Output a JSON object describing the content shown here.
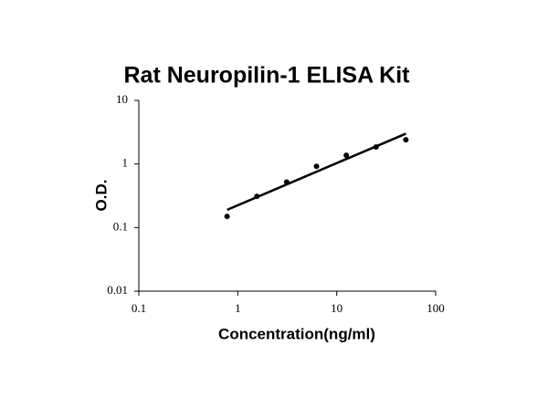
{
  "chart_data": {
    "type": "scatter",
    "title": "Rat Neuropilin-1 ELISA Kit",
    "x_label": "Concentration(ng/ml)",
    "y_label": "O.D.",
    "x_scale": "log",
    "y_scale": "log",
    "xlim": [
      0.1,
      100
    ],
    "ylim": [
      0.01,
      10
    ],
    "xticks": [
      0.1,
      1,
      10,
      100
    ],
    "yticks": [
      0.01,
      0.1,
      1,
      10
    ],
    "series": [
      {
        "color": "#000000",
        "x": [
          0.78,
          1.56,
          3.12,
          6.25,
          12.5,
          25,
          50
        ],
        "values": [
          0.15,
          0.31,
          0.52,
          0.92,
          1.37,
          1.85,
          2.4
        ]
      }
    ],
    "fit_line": {
      "color": "#000000",
      "x": [
        0.78,
        50
      ],
      "values": [
        0.19,
        3.0
      ]
    }
  }
}
